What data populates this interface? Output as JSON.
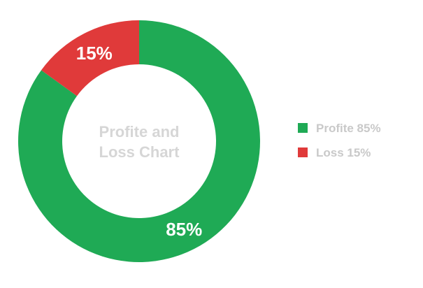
{
  "chart_data": {
    "type": "pie",
    "donut": true,
    "title_lines": [
      "Profite and",
      "Loss Chart"
    ],
    "slices": [
      {
        "name": "Profite",
        "value": 85,
        "label": "85%",
        "legend": "Profite 85%",
        "color": "#1faa55"
      },
      {
        "name": "Loss",
        "value": 15,
        "label": "15%",
        "legend": "Loss 15%",
        "color": "#e03a3a"
      }
    ],
    "legend_position": "right"
  }
}
